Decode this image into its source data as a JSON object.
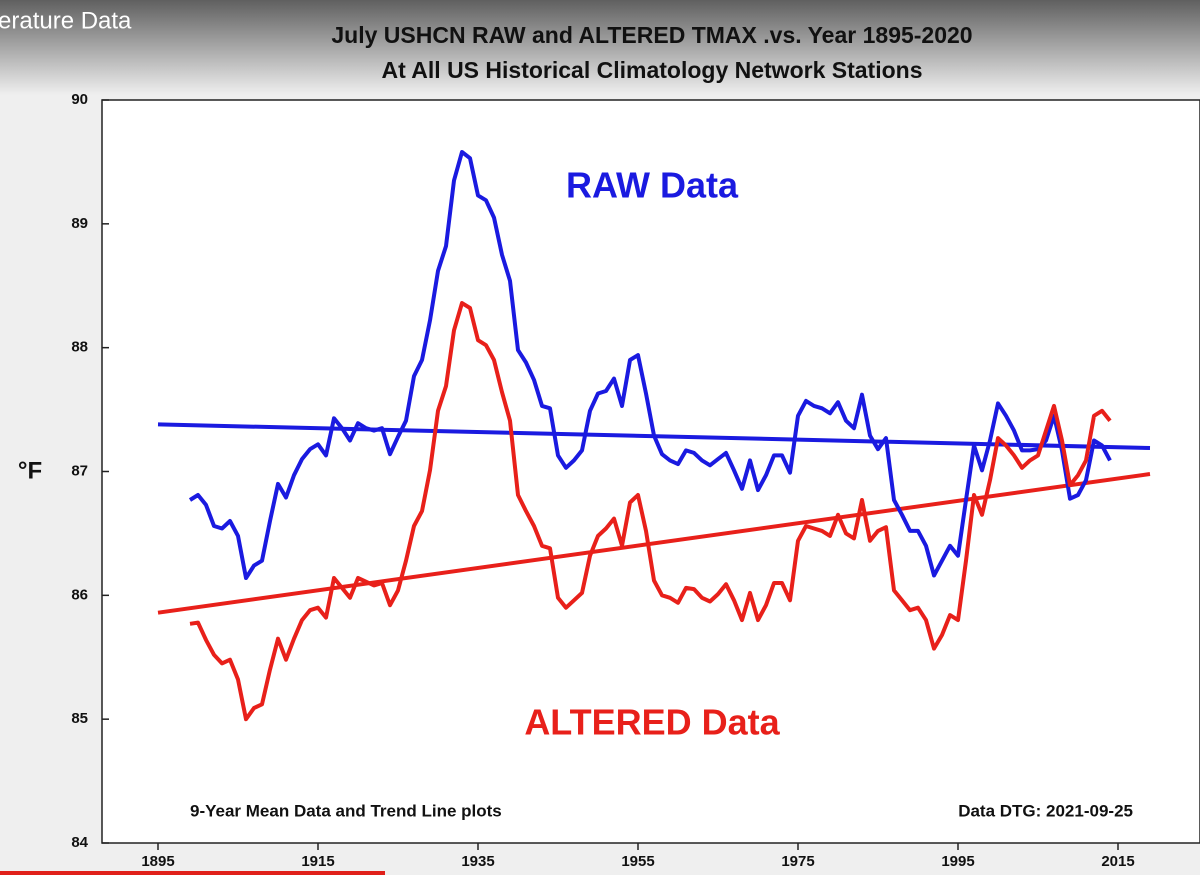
{
  "video_title": "erature Data",
  "chart_data": {
    "type": "line",
    "title": "July USHCN RAW and ALTERED TMAX .vs. Year 1895-2020",
    "subtitle": "At All US Historical Climatology Network Stations",
    "ylabel": "°F",
    "annotations": [
      {
        "text": "RAW Data",
        "color": "#1a1ae0"
      },
      {
        "text": "ALTERED Data",
        "color": "#e8201a"
      },
      {
        "text": "9-Year Mean Data and Trend Line plots",
        "color": "#111111"
      },
      {
        "text": "Data DTG: 2021-09-25",
        "color": "#111111"
      }
    ],
    "x": [
      1899,
      1900,
      1901,
      1902,
      1903,
      1904,
      1905,
      1906,
      1907,
      1908,
      1909,
      1910,
      1911,
      1912,
      1913,
      1914,
      1915,
      1916,
      1917,
      1918,
      1919,
      1920,
      1921,
      1922,
      1923,
      1924,
      1925,
      1926,
      1927,
      1928,
      1929,
      1930,
      1931,
      1932,
      1933,
      1934,
      1935,
      1936,
      1937,
      1938,
      1939,
      1940,
      1941,
      1942,
      1943,
      1944,
      1945,
      1946,
      1947,
      1948,
      1949,
      1950,
      1951,
      1952,
      1953,
      1954,
      1955,
      1956,
      1957,
      1958,
      1959,
      1960,
      1961,
      1962,
      1963,
      1964,
      1965,
      1966,
      1967,
      1968,
      1969,
      1970,
      1971,
      1972,
      1973,
      1974,
      1975,
      1976,
      1977,
      1978,
      1979,
      1980,
      1981,
      1982,
      1983,
      1984,
      1985,
      1986,
      1987,
      1988,
      1989,
      1990,
      1991,
      1992,
      1993,
      1994,
      1995,
      1996,
      1997,
      1998,
      1999,
      2000,
      2001,
      2002,
      2003,
      2004,
      2005,
      2006,
      2007,
      2008,
      2009,
      2010,
      2011,
      2012,
      2013,
      2014
    ],
    "series": [
      {
        "name": "RAW Data",
        "color": "#1a1ae0",
        "values": [
          86.77,
          86.81,
          86.73,
          86.56,
          86.54,
          86.6,
          86.48,
          86.14,
          86.24,
          86.28,
          86.6,
          86.9,
          86.79,
          86.97,
          87.1,
          87.18,
          87.22,
          87.13,
          87.43,
          87.35,
          87.25,
          87.39,
          87.35,
          87.33,
          87.35,
          87.14,
          87.28,
          87.41,
          87.77,
          87.9,
          88.22,
          88.62,
          88.82,
          89.35,
          89.58,
          89.53,
          89.23,
          89.19,
          89.05,
          88.75,
          88.54,
          87.98,
          87.88,
          87.74,
          87.53,
          87.51,
          87.13,
          87.03,
          87.09,
          87.17,
          87.49,
          87.63,
          87.65,
          87.75,
          87.53,
          87.9,
          87.94,
          87.63,
          87.29,
          87.14,
          87.09,
          87.06,
          87.17,
          87.15,
          87.09,
          87.05,
          87.1,
          87.15,
          87.01,
          86.86,
          87.09,
          86.85,
          86.97,
          87.13,
          87.13,
          86.99,
          87.45,
          87.57,
          87.53,
          87.51,
          87.47,
          87.56,
          87.41,
          87.35,
          87.62,
          87.29,
          87.18,
          87.27,
          86.77,
          86.65,
          86.52,
          86.52,
          86.4,
          86.16,
          86.28,
          86.4,
          86.32,
          86.77,
          87.21,
          87.01,
          87.25,
          87.55,
          87.45,
          87.33,
          87.17,
          87.17,
          87.18,
          87.25,
          87.45,
          87.17,
          86.78,
          86.81,
          86.93,
          87.25,
          87.21,
          87.09
        ]
      },
      {
        "name": "ALTERED Data",
        "color": "#e8201a",
        "values": [
          85.77,
          85.78,
          85.64,
          85.52,
          85.45,
          85.48,
          85.32,
          85.0,
          85.09,
          85.12,
          85.4,
          85.65,
          85.48,
          85.65,
          85.8,
          85.88,
          85.9,
          85.82,
          86.14,
          86.06,
          85.98,
          86.14,
          86.11,
          86.08,
          86.1,
          85.92,
          86.04,
          86.28,
          86.56,
          86.68,
          87.01,
          87.49,
          87.69,
          88.14,
          88.36,
          88.32,
          88.06,
          88.02,
          87.9,
          87.64,
          87.41,
          86.81,
          86.68,
          86.56,
          86.4,
          86.38,
          85.98,
          85.9,
          85.96,
          86.02,
          86.32,
          86.48,
          86.54,
          86.62,
          86.4,
          86.75,
          86.81,
          86.52,
          86.12,
          86.0,
          85.98,
          85.94,
          86.06,
          86.05,
          85.98,
          85.95,
          86.01,
          86.09,
          85.96,
          85.8,
          86.02,
          85.8,
          85.92,
          86.1,
          86.1,
          85.96,
          86.44,
          86.56,
          86.54,
          86.52,
          86.48,
          86.65,
          86.5,
          86.46,
          86.77,
          86.44,
          86.52,
          86.55,
          86.04,
          85.96,
          85.88,
          85.9,
          85.8,
          85.57,
          85.68,
          85.84,
          85.8,
          86.28,
          86.81,
          86.65,
          86.93,
          87.27,
          87.21,
          87.13,
          87.03,
          87.09,
          87.13,
          87.33,
          87.53,
          87.25,
          86.89,
          86.97,
          87.09,
          87.45,
          87.49,
          87.41
        ]
      }
    ],
    "trends": [
      {
        "color": "#1a1ae0",
        "x": [
          1895,
          2019
        ],
        "values": [
          87.38,
          87.19
        ]
      },
      {
        "color": "#e8201a",
        "x": [
          1895,
          2019
        ],
        "values": [
          85.86,
          86.98
        ]
      }
    ],
    "xlim": [
      1888,
      2025
    ],
    "xticks": [
      1895,
      1915,
      1935,
      1955,
      1975,
      1995,
      2015
    ],
    "ylim": [
      84,
      90
    ],
    "yticks": [
      84,
      85,
      86,
      87,
      88,
      89,
      90
    ]
  }
}
